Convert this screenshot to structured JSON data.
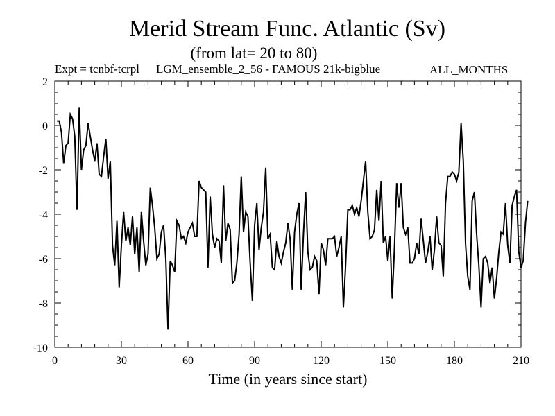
{
  "chart_data": {
    "type": "line",
    "title": "Merid Stream Func. Atlantic (Sv)",
    "subtitle": "(from lat= 20 to 80)",
    "experiment": "Expt = tcnbf-tcrpl",
    "ensemble": "LGM_ensemble_2_56 - FAMOUS 21k-bigblue",
    "months": "ALL_MONTHS",
    "xlabel": "Time (in years since start)",
    "ylabel": "",
    "xlim": [
      0,
      210
    ],
    "ylim": [
      -10,
      2
    ],
    "x_ticks": [
      "0",
      "30",
      "60",
      "90",
      "120",
      "150",
      "180",
      "210"
    ],
    "y_ticks": [
      "2",
      "0",
      "-2",
      "-4",
      "-6",
      "-8",
      "-10"
    ],
    "x_start": 1,
    "x_step": 1,
    "series": [
      {
        "name": "Merid Stream Func.",
        "values": [
          0.2,
          0.2,
          -0.3,
          -1.7,
          -0.9,
          -0.8,
          0.5,
          0.3,
          -0.5,
          -3.8,
          0.8,
          -2.0,
          -1.1,
          -0.9,
          0.1,
          -0.5,
          -1.1,
          -1.6,
          -0.8,
          -2.2,
          -2.3,
          -1.4,
          -0.6,
          -2.4,
          -1.6,
          -5.4,
          -6.3,
          -4.3,
          -7.3,
          -5.4,
          -3.9,
          -5.2,
          -4.6,
          -5.4,
          -4.1,
          -5.8,
          -4.6,
          -6.6,
          -3.9,
          -5.2,
          -6.3,
          -5.8,
          -2.8,
          -3.6,
          -4.6,
          -6.0,
          -5.8,
          -4.8,
          -4.5,
          -6.0,
          -9.2,
          -6.1,
          -6.3,
          -6.6,
          -4.3,
          -4.5,
          -5.1,
          -5.0,
          -5.3,
          -4.8,
          -4.6,
          -4.4,
          -5.0,
          -5.0,
          -2.5,
          -2.8,
          -2.9,
          -3.0,
          -6.4,
          -3.2,
          -4.9,
          -5.5,
          -5.1,
          -5.2,
          -6.2,
          -2.7,
          -5.2,
          -4.4,
          -4.7,
          -7.1,
          -7.0,
          -6.2,
          -4.9,
          -2.3,
          -4.8,
          -3.9,
          -4.1,
          -6.2,
          -7.9,
          -4.5,
          -3.5,
          -5.6,
          -4.6,
          -3.9,
          -1.9,
          -5.1,
          -4.9,
          -6.4,
          -6.5,
          -5.2,
          -5.9,
          -6.2,
          -5.7,
          -5.3,
          -4.4,
          -5.1,
          -7.4,
          -4.8,
          -4.0,
          -3.5,
          -7.4,
          -4.9,
          -3.0,
          -5.7,
          -6.5,
          -6.4,
          -5.9,
          -6.1,
          -7.6,
          -5.3,
          -5.6,
          -6.3,
          -5.1,
          -5.1,
          -5.1,
          -5.0,
          -5.9,
          -5.5,
          -5.0,
          -8.2,
          -6.3,
          -3.8,
          -3.8,
          -3.6,
          -4.0,
          -3.7,
          -4.1,
          -3.4,
          -2.5,
          -1.6,
          -3.9,
          -5.1,
          -5.0,
          -4.7,
          -2.9,
          -4.3,
          -2.5,
          -5.3,
          -5.0,
          -6.1,
          -5.0,
          -7.8,
          -5.5,
          -2.6,
          -3.7,
          -2.6,
          -4.6,
          -4.9,
          -4.6,
          -6.2,
          -6.2,
          -6.0,
          -5.3,
          -5.8,
          -4.2,
          -5.2,
          -6.2,
          -5.7,
          -5.0,
          -6.5,
          -5.6,
          -4.1,
          -5.3,
          -5.4,
          -6.8,
          -3.5,
          -2.3,
          -2.3,
          -2.1,
          -2.2,
          -2.5,
          -2.1,
          0.1,
          -1.6,
          -5.3,
          -6.8,
          -7.4,
          -3.4,
          -3.0,
          -4.9,
          -6.3,
          -8.2,
          -6.0,
          -5.9,
          -6.2,
          -7.1,
          -6.4,
          -7.8,
          -6.9,
          -5.7,
          -4.8,
          -4.9,
          -3.5,
          -5.4,
          -6.2,
          -3.6,
          -3.2,
          -2.9,
          -5.7,
          -6.4,
          -6.1,
          -4.4,
          -3.4
        ]
      }
    ]
  }
}
